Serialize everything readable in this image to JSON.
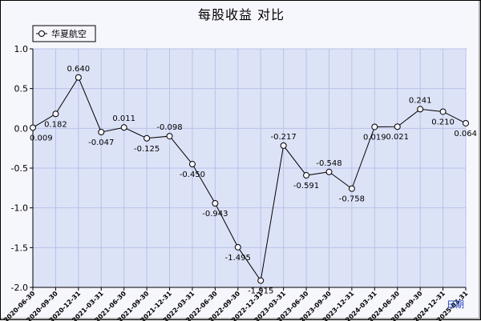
{
  "chart_data": {
    "type": "line",
    "title": "每股收益  对比",
    "xlabel": "日期",
    "ylabel": "",
    "ylim": [
      -2.0,
      1.0
    ],
    "yticks": [
      "1.0",
      "0.5",
      "0.0",
      "-0.5",
      "-1.0",
      "-1.5",
      "-2.0"
    ],
    "grid": true,
    "legend_position": "top-left",
    "colors": {
      "line": "#000000",
      "plot_bg": "#dde3f7",
      "grid": "#b8c1e8"
    },
    "categories": [
      "2020-06-30",
      "2020-09-30",
      "2020-12-31",
      "2021-03-31",
      "2021-06-30",
      "2021-09-30",
      "2021-12-31",
      "2022-03-31",
      "2022-06-30",
      "2022-09-30",
      "2022-12-31",
      "2023-03-31",
      "2023-06-30",
      "2023-09-30",
      "2023-12-31",
      "2024-03-31",
      "2024-06-30",
      "2024-09-30",
      "2024-12-31",
      "2025-03-31"
    ],
    "series": [
      {
        "name": "华夏航空",
        "values": [
          0.009,
          0.182,
          0.64,
          -0.047,
          0.011,
          -0.125,
          -0.098,
          -0.45,
          -0.943,
          -1.495,
          -1.915,
          -0.217,
          -0.591,
          -0.548,
          -0.758,
          0.019,
          0.021,
          0.241,
          0.21,
          0.064
        ],
        "labels": [
          "0.009",
          "0.182",
          "0.640",
          "-0.047",
          "0.011",
          "-0.125",
          "-0.098",
          "-0.450",
          "-0.943",
          "-1.495",
          "-1.915",
          "-0.217",
          "-0.591",
          "-0.548",
          "-0.758",
          "0.019",
          "0.021",
          "0.241",
          "0.210",
          "0.064"
        ]
      }
    ]
  }
}
